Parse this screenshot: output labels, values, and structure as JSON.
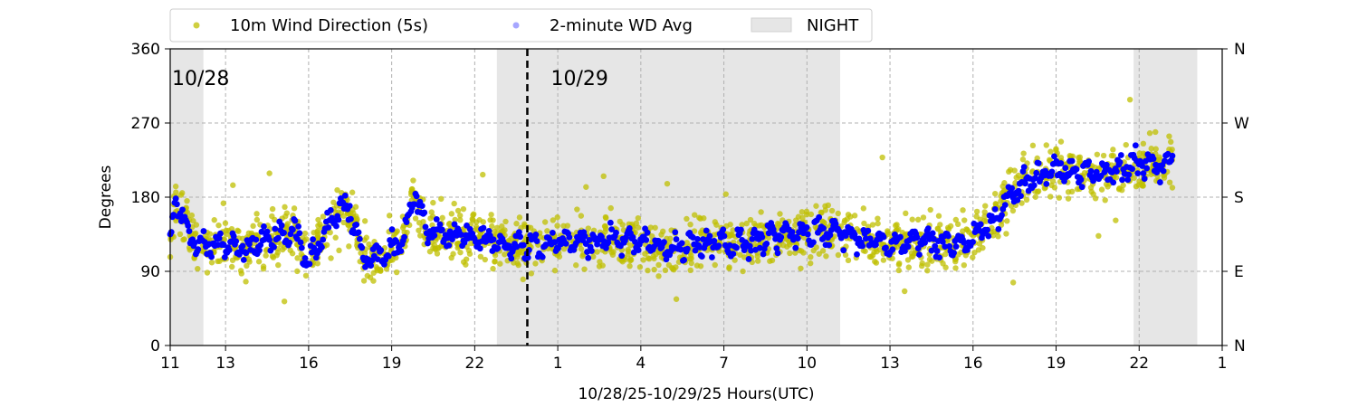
{
  "chart_data": {
    "type": "scatter",
    "xlabel": "10/28/25-10/29/25  Hours(UTC)",
    "ylabel": "Degrees",
    "xlim": [
      11,
      49
    ],
    "ylim": [
      0,
      360
    ],
    "x_ticks": [
      {
        "value": 11,
        "label": "11"
      },
      {
        "value": 13,
        "label": "13"
      },
      {
        "value": 16,
        "label": "16"
      },
      {
        "value": 19,
        "label": "19"
      },
      {
        "value": 22,
        "label": "22"
      },
      {
        "value": 25,
        "label": "1"
      },
      {
        "value": 28,
        "label": "4"
      },
      {
        "value": 31,
        "label": "7"
      },
      {
        "value": 34,
        "label": "10"
      },
      {
        "value": 37,
        "label": "13"
      },
      {
        "value": 40,
        "label": "16"
      },
      {
        "value": 43,
        "label": "19"
      },
      {
        "value": 46,
        "label": "22"
      },
      {
        "value": 49,
        "label": "1"
      }
    ],
    "y_ticks": [
      0,
      90,
      180,
      270,
      360
    ],
    "y_right_ticks": [
      {
        "value": 0,
        "label": "N"
      },
      {
        "value": 90,
        "label": "E"
      },
      {
        "value": 180,
        "label": "S"
      },
      {
        "value": 270,
        "label": "W"
      },
      {
        "value": 360,
        "label": "N"
      }
    ],
    "grid": true,
    "legend_position": "top-left, above plot",
    "legend": [
      {
        "label": "10m Wind Direction (5s)",
        "kind": "scatter",
        "color": "#bfbf00"
      },
      {
        "label": "2-minute WD Avg",
        "kind": "scatter",
        "color": "#0000ff"
      },
      {
        "label": "NIGHT",
        "kind": "band",
        "color": "#e6e6e6"
      }
    ],
    "night_bands": [
      [
        11,
        12.2
      ],
      [
        22.8,
        35.2
      ],
      [
        45.8,
        48.1
      ]
    ],
    "day_divider": {
      "x": 23.9,
      "labels": [
        "10/28",
        "10/29"
      ]
    },
    "series": [
      {
        "name": "10m Wind Direction (5s)",
        "color": "#bfbf00",
        "spread": 38,
        "points_from_avg_trace": true
      },
      {
        "name": "2-minute WD Avg",
        "color": "#0000ff",
        "x": [
          11,
          11.2,
          11.5,
          12,
          12.3,
          12.8,
          13.2,
          13.8,
          14.4,
          15,
          15.5,
          16,
          16.4,
          16.8,
          17.2,
          17.6,
          18,
          18.5,
          19,
          19.4,
          19.8,
          20.3,
          21,
          22,
          23,
          24,
          25,
          26,
          27,
          28,
          29,
          30,
          31,
          32,
          33,
          34,
          35,
          36,
          37,
          38,
          39,
          40,
          40.8,
          41.5,
          42,
          43,
          44,
          45,
          46,
          46.8,
          47.2
        ],
        "y": [
          125,
          175,
          150,
          115,
          120,
          125,
          120,
          115,
          130,
          135,
          140,
          95,
          130,
          150,
          170,
          155,
          105,
          110,
          115,
          125,
          185,
          140,
          135,
          130,
          125,
          120,
          125,
          125,
          130,
          125,
          115,
          125,
          125,
          125,
          135,
          140,
          140,
          130,
          125,
          125,
          120,
          130,
          155,
          190,
          200,
          215,
          210,
          210,
          220,
          215,
          230
        ]
      }
    ]
  }
}
